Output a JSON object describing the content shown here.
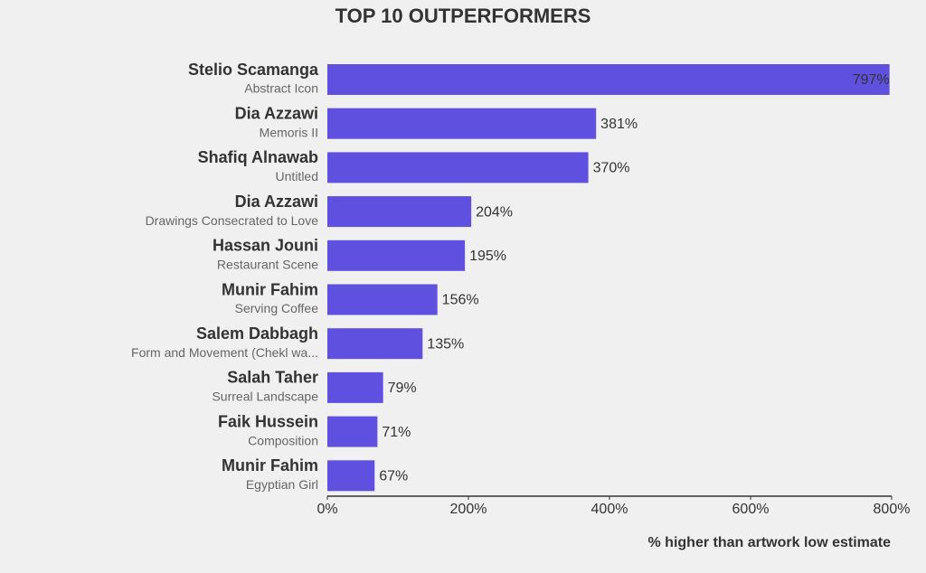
{
  "chart_data": {
    "type": "barh",
    "title": "TOP 10 OUTPERFORMERS",
    "categories": [
      "Stelio Scamanga",
      "Dia Azzawi",
      "Shafiq Alnawab",
      "Dia Azzawi",
      "Hassan Jouni",
      "Munir Fahim",
      "Salem Dabbagh",
      "Salah Taher",
      "Faik Hussein",
      "Munir Fahim"
    ],
    "subtitles": [
      "Abstract Icon",
      "Memoris II",
      "Untitled",
      "Drawings Consecrated to Love",
      "Restaurant Scene",
      "Serving Coffee",
      "Form and Movement (Chekl wa...",
      "Surreal Landscape",
      "Composition",
      "Egyptian Girl"
    ],
    "values": [
      797,
      381,
      370,
      204,
      195,
      156,
      135,
      79,
      71,
      67
    ],
    "value_labels": [
      "797%",
      "381%",
      "370%",
      "204%",
      "195%",
      "156%",
      "135%",
      "79%",
      "71%",
      "67%"
    ],
    "color": "#6050e0",
    "xlim": [
      0,
      800
    ],
    "xticks": [
      {
        "value": 0,
        "label": "0%"
      },
      {
        "value": 200,
        "label": "200%"
      },
      {
        "value": 400,
        "label": "400%"
      },
      {
        "value": 600,
        "label": "600%"
      },
      {
        "value": 800,
        "label": "800%"
      }
    ],
    "xlabel": "% higher than artwork low estimate"
  }
}
